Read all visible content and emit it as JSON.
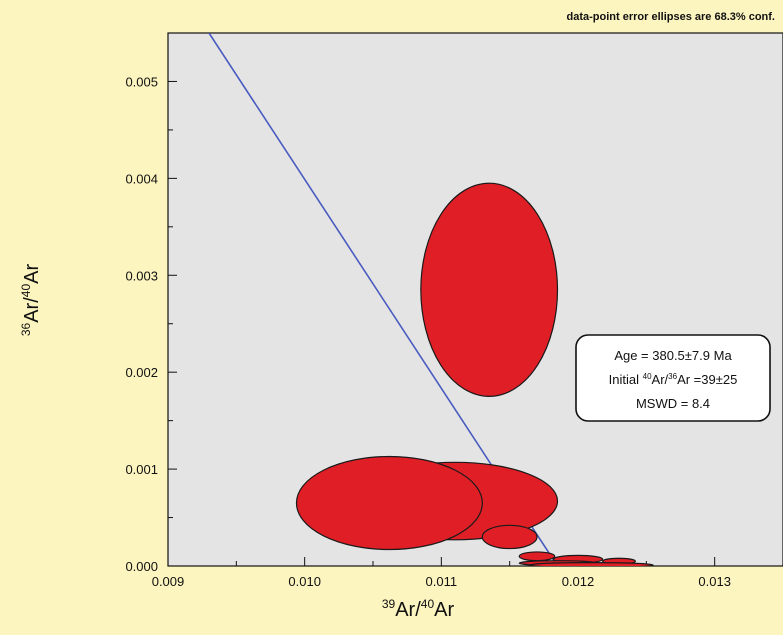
{
  "chart_data": {
    "type": "scatter",
    "note": "data-point error ellipses are 68.3% conf.",
    "xlabel": {
      "base1": "39",
      "part1": "Ar/",
      "base2": "40",
      "part2": "Ar"
    },
    "ylabel": {
      "base1": "36",
      "part1": "Ar/",
      "base2": "40",
      "part2": "Ar"
    },
    "xlim": [
      0.009,
      0.0135
    ],
    "ylim": [
      0.0,
      0.0055
    ],
    "x_ticks": [
      0.009,
      0.01,
      0.011,
      0.012,
      0.013
    ],
    "y_ticks": [
      0.0,
      0.001,
      0.002,
      0.003,
      0.004,
      0.005
    ],
    "x_tick_labels": [
      "0.009",
      "0.010",
      "0.011",
      "0.012",
      "0.013"
    ],
    "y_tick_labels": [
      "0.000",
      "0.001",
      "0.002",
      "0.003",
      "0.004",
      "0.005"
    ],
    "isochron_line": {
      "x": [
        0.0093,
        0.01185
      ],
      "y": [
        0.0055,
        0.0
      ]
    },
    "ellipses": [
      {
        "x": 0.01135,
        "y": 0.00285,
        "rx": 0.0005,
        "ry": 0.0011
      },
      {
        "x": 0.0111,
        "y": 0.00067,
        "rx": 0.00075,
        "ry": 0.0004
      },
      {
        "x": 0.01062,
        "y": 0.00065,
        "rx": 0.00068,
        "ry": 0.00048
      },
      {
        "x": 0.0115,
        "y": 0.0003,
        "rx": 0.0002,
        "ry": 0.00012
      },
      {
        "x": 0.0117,
        "y": 0.0001,
        "rx": 0.00013,
        "ry": 4.5e-05
      },
      {
        "x": 0.012,
        "y": 7e-05,
        "rx": 0.00018,
        "ry": 4e-05
      },
      {
        "x": 0.0123,
        "y": 5e-05,
        "rx": 0.00012,
        "ry": 3e-05
      },
      {
        "x": 0.01185,
        "y": 3e-05,
        "rx": 0.00028,
        "ry": 2.5e-05
      },
      {
        "x": 0.0121,
        "y": 1e-05,
        "rx": 0.00045,
        "ry": 2.5e-05
      }
    ],
    "annotation": {
      "age": "Age = 380.5±7.9 Ma",
      "initial_prefix": "Initial ",
      "initial_sup1": "40",
      "initial_mid": "Ar/",
      "initial_sup2": "36",
      "initial_suffix": "Ar =39±25",
      "mswd": "MSWD = 8.4"
    },
    "colors": {
      "background": "#fdf5c0",
      "plot_area": "#e4e4e4",
      "ellipse_fill": "#e01e26",
      "ellipse_stroke": "#1a1a1a",
      "isochron_line": "#4a5bbf"
    },
    "grid": false
  }
}
